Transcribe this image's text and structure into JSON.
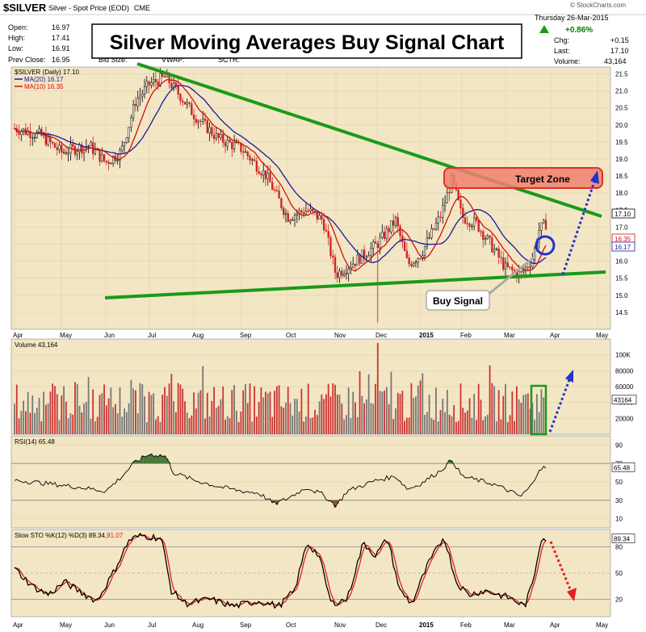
{
  "header": {
    "symbol": "$SILVER",
    "description": "Silver - Spot Price (EOD)",
    "exchange": "CME",
    "brand": "© StockCharts.com",
    "date": "Thursday  26-Mar-2015",
    "open_label": "Open:",
    "open_value": "16.97",
    "high_label": "High:",
    "high_value": "17.41",
    "low_label": "Low:",
    "low_value": "16.91",
    "prev_close_label": "Prev Close:",
    "prev_close_value": "16.95",
    "bid_label": "Bid Size:",
    "vwap_label": "VWAP:",
    "sctr_label": "SCTR:",
    "change_pct": "+0.86%",
    "chg_label": "Chg:",
    "chg_value": "+0.15",
    "last_label": "Last:",
    "last_value": "17.10",
    "volume_label": "Volume:",
    "volume_value": "43,164",
    "up_color": "#008000"
  },
  "overlay_title": "Silver Moving Averages Buy Signal Chart",
  "annotations": {
    "target_zone": "Target Zone",
    "buy_signal": "Buy Signal"
  },
  "colors": {
    "panel_bg": "#f3e6c4",
    "trendline": "#1a9a1a",
    "ma20": "#1a1aa0",
    "ma10": "#d01010",
    "target_fill": "#f08070",
    "arrow_blue": "#2233cc",
    "arrow_red": "#e02020",
    "volume_up": "#cc3333",
    "volume_down": "#777777",
    "rsi_fill_high": "#4a7a3a",
    "rsi_fill_low": "#8a4a3a",
    "sto_k": "#000000",
    "sto_d": "#e02020"
  },
  "months": [
    "Apr",
    "May",
    "Jun",
    "Jul",
    "Aug",
    "Sep",
    "Oct",
    "Nov",
    "Dec",
    "2015",
    "Feb",
    "Mar",
    "Apr",
    "May"
  ],
  "chart_data": [
    {
      "type": "candlestick",
      "legend": [
        "$SILVER (Daily) 17.10",
        "MA(20) 16.17",
        "MA(10) 16.35"
      ],
      "y_ticks": [
        "21.5",
        "21.0",
        "20.5",
        "20.0",
        "19.5",
        "19.0",
        "18.5",
        "18.0",
        "17.5",
        "17.0",
        "16.5",
        "16.0",
        "15.5",
        "15.0",
        "14.5"
      ],
      "ylim": [
        14.0,
        21.7
      ],
      "price_tags": [
        "17.10",
        "16.35",
        "16.17"
      ],
      "series": [
        {
          "name": "$SILVER (Daily)",
          "last": 17.1
        },
        {
          "name": "MA(20)",
          "last": 16.17
        },
        {
          "name": "MA(10)",
          "last": 16.35
        }
      ],
      "key_points": [
        {
          "x": "Apr",
          "y": 19.9
        },
        {
          "x": "May",
          "y": 19.2
        },
        {
          "x": "Jun",
          "y": 18.9
        },
        {
          "x": "Jul",
          "y": 21.3
        },
        {
          "x": "Aug",
          "y": 20.3
        },
        {
          "x": "Sep",
          "y": 19.3
        },
        {
          "x": "Oct",
          "y": 17.3
        },
        {
          "x": "Nov",
          "y": 15.6
        },
        {
          "x": "Dec",
          "y": 16.5
        },
        {
          "x": "2015",
          "y": 16.2
        },
        {
          "x": "Feb",
          "y": 17.3
        },
        {
          "x": "Mar",
          "y": 15.7
        },
        {
          "x": "Apr",
          "y": 17.1
        }
      ]
    },
    {
      "type": "bar",
      "legend": "Volume 43,164",
      "y_ticks": [
        "100K",
        "80000",
        "60000",
        "40000",
        "20000"
      ],
      "value_tag": "43164",
      "ylim": [
        0,
        120000
      ]
    },
    {
      "type": "line",
      "legend": "RSI(14) 65.48",
      "y_ticks": [
        "90",
        "70",
        "50",
        "30",
        "10"
      ],
      "value_tag": "65.48",
      "ylim": [
        0,
        100
      ]
    },
    {
      "type": "line",
      "legend_prefix": "Slow STO %K(12) %D(3) 89.34,",
      "legend_suffix": "91.07",
      "y_ticks": [
        "80",
        "50",
        "20"
      ],
      "value_tag": "89.34",
      "ylim": [
        0,
        100
      ]
    }
  ]
}
